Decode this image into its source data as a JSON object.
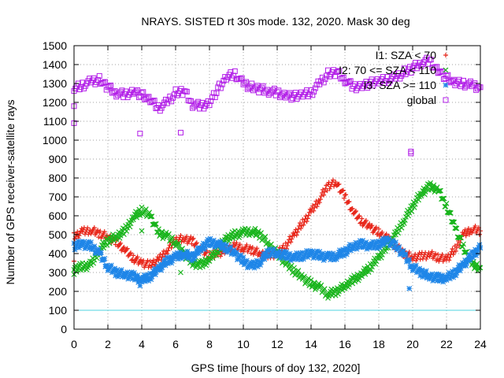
{
  "chart_data": {
    "type": "scatter",
    "title": "NRAYS. SISTED rt 30s mode. 132, 2020. Mask 30 deg",
    "xlabel": "GPS time [hours of doy 132, 2020]",
    "ylabel": "Number of GPS receiver-satellite rays",
    "xlim": [
      0,
      24
    ],
    "ylim": [
      0,
      1500
    ],
    "xticks": [
      "0",
      "2",
      "4",
      "6",
      "8",
      "10",
      "12",
      "14",
      "16",
      "18",
      "20",
      "22",
      "24"
    ],
    "yticks": [
      "0",
      "100",
      "200",
      "300",
      "400",
      "500",
      "600",
      "700",
      "800",
      "900",
      "1000",
      "1100",
      "1200",
      "1300",
      "1400",
      "1500"
    ],
    "grid": true,
    "legend_position": "top-right",
    "reference_line": {
      "y": 100,
      "color": "#4fd3e0"
    },
    "series": [
      {
        "name": "I1: SZA < 70",
        "marker": "+",
        "color": "#e8271b",
        "x": [
          0,
          0.5,
          1,
          1.5,
          2,
          2.5,
          3,
          3.5,
          4,
          4.5,
          5,
          5.5,
          6,
          6.5,
          7,
          7.5,
          8,
          8.5,
          9,
          9.5,
          10,
          10.5,
          11,
          11.5,
          12,
          12.5,
          13,
          13.5,
          14,
          14.5,
          15,
          15.5,
          16,
          16.5,
          17,
          17.5,
          18,
          18.5,
          19,
          19.5,
          20,
          20.5,
          21,
          21.5,
          22,
          22.5,
          23,
          23.5,
          24
        ],
        "y": [
          490,
          515,
          525,
          505,
          490,
          460,
          420,
          375,
          350,
          340,
          365,
          420,
          470,
          480,
          465,
          420,
          390,
          400,
          420,
          440,
          430,
          420,
          400,
          390,
          400,
          440,
          500,
          560,
          620,
          690,
          760,
          775,
          700,
          620,
          570,
          540,
          510,
          480,
          440,
          400,
          380,
          385,
          395,
          380,
          370,
          420,
          500,
          530,
          520
        ]
      },
      {
        "name": "I2: 70 <= SZA < 110",
        "marker": "x",
        "color": "#19b51c",
        "x": [
          0,
          0.5,
          1,
          1.5,
          2,
          2.5,
          3,
          3.5,
          4,
          4.5,
          5,
          5.5,
          6,
          6.5,
          7,
          7.5,
          8,
          8.5,
          9,
          9.5,
          10,
          10.5,
          11,
          11.5,
          12,
          12.5,
          13,
          13.5,
          14,
          14.5,
          15,
          15.5,
          16,
          16.5,
          17,
          17.5,
          18,
          18.5,
          19,
          19.5,
          20,
          20.5,
          21,
          21.5,
          22,
          22.5,
          23,
          23.5,
          24
        ],
        "y": [
          320,
          330,
          340,
          420,
          470,
          490,
          520,
          590,
          630,
          600,
          510,
          490,
          460,
          400,
          350,
          340,
          370,
          420,
          480,
          500,
          510,
          520,
          500,
          450,
          400,
          350,
          310,
          270,
          240,
          220,
          185,
          200,
          230,
          260,
          290,
          330,
          380,
          440,
          500,
          580,
          650,
          720,
          755,
          740,
          650,
          540,
          430,
          340,
          325
        ]
      },
      {
        "name": "I3: SZA >= 110",
        "marker": "*",
        "color": "#1f86e8",
        "x": [
          0,
          0.5,
          1,
          1.5,
          2,
          2.5,
          3,
          3.5,
          4,
          4.5,
          5,
          5.5,
          6,
          6.5,
          7,
          7.5,
          8,
          8.5,
          9,
          9.5,
          10,
          10.5,
          11,
          11.5,
          12,
          12.5,
          13,
          13.5,
          14,
          14.5,
          15,
          15.5,
          16,
          16.5,
          17,
          17.5,
          18,
          18.5,
          19,
          19.5,
          20,
          20.5,
          21,
          21.5,
          22,
          22.5,
          23,
          23.5,
          24
        ],
        "y": [
          440,
          450,
          440,
          400,
          330,
          300,
          290,
          280,
          260,
          280,
          320,
          360,
          380,
          400,
          380,
          430,
          460,
          450,
          430,
          400,
          360,
          330,
          360,
          410,
          400,
          390,
          380,
          390,
          400,
          390,
          380,
          390,
          410,
          440,
          450,
          440,
          450,
          470,
          440,
          390,
          330,
          300,
          280,
          270,
          270,
          300,
          340,
          390,
          430
        ]
      },
      {
        "name": "global",
        "marker": "square",
        "color": "#b21ee8",
        "x": [
          0,
          0.5,
          1,
          1.5,
          2,
          2.5,
          3,
          3.5,
          4,
          4.5,
          5,
          5.5,
          6,
          6.5,
          7,
          7.5,
          8,
          8.5,
          9,
          9.5,
          10,
          10.5,
          11,
          11.5,
          12,
          12.5,
          13,
          13.5,
          14,
          14.5,
          15,
          15.5,
          16,
          16.5,
          17,
          17.5,
          18,
          18.5,
          19,
          19.5,
          20,
          20.5,
          21,
          21.5,
          22,
          22.5,
          23,
          23.5,
          24
        ],
        "y": [
          1270,
          1290,
          1310,
          1320,
          1280,
          1250,
          1240,
          1260,
          1240,
          1210,
          1170,
          1200,
          1250,
          1260,
          1190,
          1180,
          1200,
          1270,
          1330,
          1350,
          1300,
          1280,
          1270,
          1260,
          1250,
          1240,
          1230,
          1240,
          1250,
          1300,
          1350,
          1360,
          1320,
          1280,
          1290,
          1300,
          1310,
          1320,
          1330,
          1360,
          1380,
          1410,
          1420,
          1370,
          1330,
          1300,
          1300,
          1290,
          1280
        ]
      }
    ],
    "outliers": [
      {
        "series": "global",
        "x": 0,
        "y": 1090
      },
      {
        "series": "global",
        "x": 0,
        "y": 1180
      },
      {
        "series": "global",
        "x": 3.9,
        "y": 1035
      },
      {
        "series": "global",
        "x": 6.3,
        "y": 1040
      },
      {
        "series": "global",
        "x": 19.9,
        "y": 940
      },
      {
        "series": "global",
        "x": 19.9,
        "y": 930
      },
      {
        "series": "I3: SZA >= 110",
        "x": 3.9,
        "y": 230
      },
      {
        "series": "I3: SZA >= 110",
        "x": 19.8,
        "y": 215
      },
      {
        "series": "I2: 70 <= SZA < 110",
        "x": 4.0,
        "y": 520
      },
      {
        "series": "I2: 70 <= SZA < 110",
        "x": 6.3,
        "y": 300
      },
      {
        "series": "I2: 70 <= SZA < 110",
        "x": 0,
        "y": 290
      },
      {
        "series": "I1: SZA < 70",
        "x": 0,
        "y": 360
      }
    ]
  }
}
